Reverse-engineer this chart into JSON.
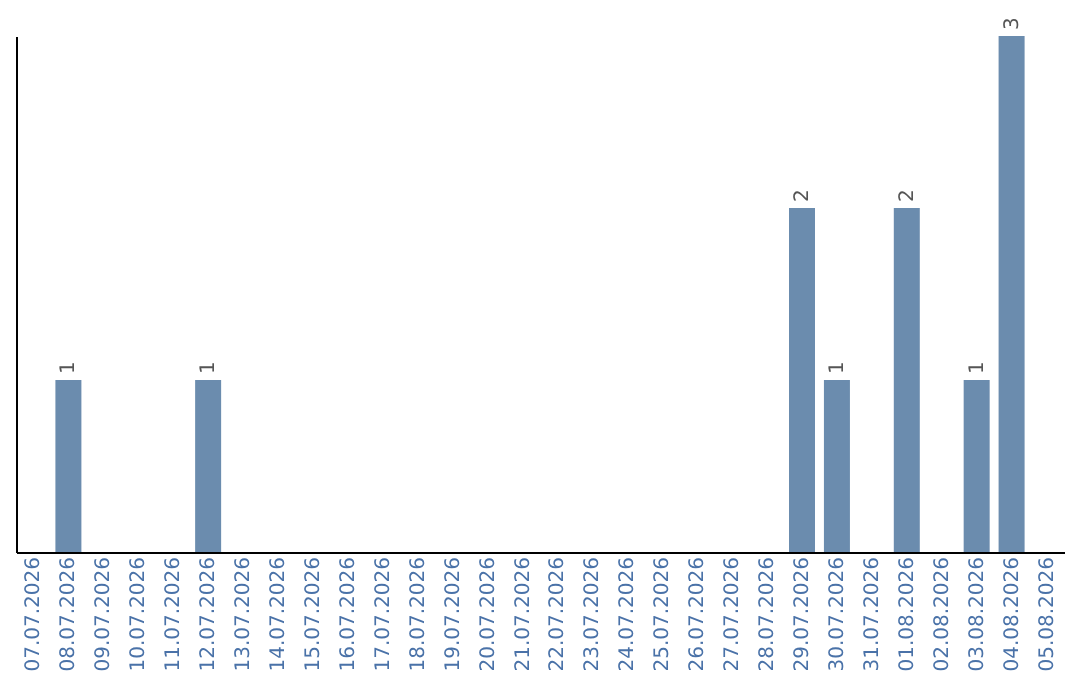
{
  "chart_data": {
    "type": "bar",
    "categories": [
      "07.07.2026",
      "08.07.2026",
      "09.07.2026",
      "10.07.2026",
      "11.07.2026",
      "12.07.2026",
      "13.07.2026",
      "14.07.2026",
      "15.07.2026",
      "16.07.2026",
      "17.07.2026",
      "18.07.2026",
      "19.07.2026",
      "20.07.2026",
      "21.07.2026",
      "22.07.2026",
      "23.07.2026",
      "24.07.2026",
      "25.07.2026",
      "26.07.2026",
      "27.07.2026",
      "28.07.2026",
      "29.07.2026",
      "30.07.2026",
      "31.07.2026",
      "01.08.2026",
      "02.08.2026",
      "03.08.2026",
      "04.08.2026",
      "05.08.2026"
    ],
    "values": [
      0,
      1,
      0,
      0,
      0,
      1,
      0,
      0,
      0,
      0,
      0,
      0,
      0,
      0,
      0,
      0,
      0,
      0,
      0,
      0,
      0,
      0,
      2,
      1,
      0,
      2,
      0,
      1,
      3,
      0
    ],
    "value_labels": [
      null,
      "1",
      null,
      null,
      null,
      "1",
      null,
      null,
      null,
      null,
      null,
      null,
      null,
      null,
      null,
      null,
      null,
      null,
      null,
      null,
      null,
      null,
      "2",
      "1",
      null,
      "2",
      null,
      "1",
      "3",
      null
    ],
    "color": "#6b8cae",
    "ylim": [
      0,
      3
    ],
    "tick_labels": "x",
    "grid": false
  }
}
